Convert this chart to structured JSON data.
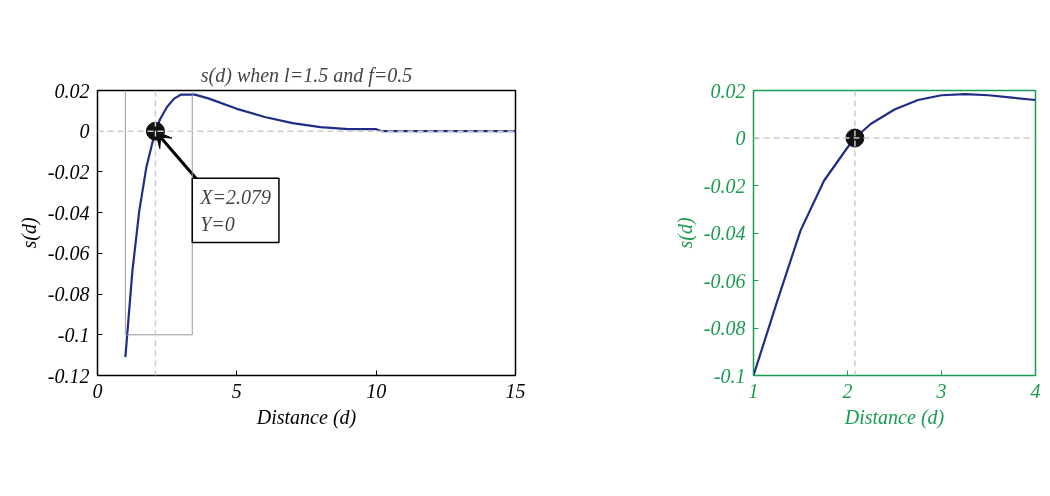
{
  "chart_data": [
    {
      "type": "line",
      "title": "s(d) when l=1.5 and f=0.5",
      "xlabel": "Distance (d)",
      "ylabel": "s(d)",
      "xlim": [
        0,
        15
      ],
      "xticks": [
        0,
        5,
        10,
        15
      ],
      "ylim": [
        -0.12,
        0.02
      ],
      "yticks": [
        -0.12,
        -0.1,
        -0.08,
        -0.06,
        -0.04,
        -0.02,
        0,
        0.02
      ],
      "grid": false,
      "series": [
        {
          "color": "#1f2d86",
          "x": [
            1,
            1.25,
            1.5,
            1.75,
            2,
            2.079,
            2.25,
            2.5,
            2.75,
            3,
            3.5,
            4,
            5,
            6,
            7,
            8,
            9,
            10,
            10.2,
            15
          ],
          "values": [
            -0.111,
            -0.069,
            -0.039,
            -0.018,
            -0.004,
            0,
            0.006,
            0.012,
            0.016,
            0.018,
            0.018,
            0.016,
            0.011,
            0.007,
            0.004,
            0.002,
            0.001,
            0.001,
            0,
            0
          ]
        },
        {
          "type": "scatter",
          "color": "#111111",
          "marker": "circle",
          "x": [
            2.079
          ],
          "values": [
            0
          ]
        }
      ],
      "ref_lines": [
        {
          "axis": "x",
          "value": 2.079,
          "color": "#cccccc",
          "line_style": "dashed"
        },
        {
          "axis": "y",
          "value": 0,
          "color": "#cccccc",
          "line_style": "dashed"
        }
      ],
      "annotations": [
        {
          "text": "X=2.079\nY=0",
          "x": 2.079,
          "y": 0
        }
      ]
    },
    {
      "type": "line",
      "xlabel": "Distance (d)",
      "ylabel": "s(d)",
      "xlim": [
        1,
        4
      ],
      "xticks": [
        1,
        2,
        3,
        4
      ],
      "ylim": [
        -0.1,
        0.02
      ],
      "yticks": [
        -0.1,
        -0.08,
        -0.06,
        -0.04,
        -0.02,
        0,
        0.02
      ],
      "grid": false,
      "series": [
        {
          "color": "#1f2d86",
          "x": [
            1,
            1.25,
            1.5,
            1.75,
            2,
            2.079,
            2.25,
            2.5,
            2.75,
            3,
            3.25,
            3.5,
            3.75,
            4
          ],
          "values": [
            -0.1,
            -0.069,
            -0.039,
            -0.018,
            -0.004,
            0,
            0.006,
            0.012,
            0.016,
            0.018,
            0.0185,
            0.018,
            0.017,
            0.016
          ]
        },
        {
          "type": "scatter",
          "color": "#111111",
          "marker": "circle",
          "x": [
            2.079
          ],
          "values": [
            0
          ]
        }
      ],
      "ref_lines": [
        {
          "axis": "x",
          "value": 2.079,
          "color": "#cccccc",
          "line_style": "dashed"
        },
        {
          "axis": "y",
          "value": 0,
          "color": "#cccccc",
          "line_style": "dashed"
        }
      ]
    }
  ]
}
